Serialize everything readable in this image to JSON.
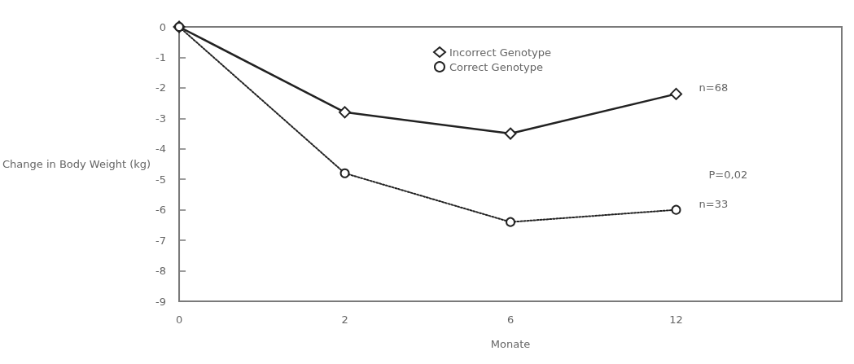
{
  "chart_data": {
    "type": "line",
    "xlabel": "Monate",
    "ylabel": "Change in Body Weight (kg)",
    "categories": [
      "0",
      "2",
      "6",
      "12",
      null
    ],
    "series": [
      {
        "name": "Incorrect Genotype",
        "color": "#222222",
        "marker": "diamond",
        "line_style": "solid",
        "values": [
          0,
          -2.8,
          -3.5,
          -2.2,
          null
        ]
      },
      {
        "name": "Correct Genotype",
        "color": "#222222",
        "marker": "circle",
        "line_style": "dotted",
        "values": [
          0,
          -4.8,
          -6.4,
          -6.0,
          null
        ]
      }
    ],
    "ylim": [
      -9,
      0
    ],
    "yticks": [
      -9,
      -8,
      -7,
      -6,
      -5,
      -4,
      -3,
      -2,
      -1,
      0
    ],
    "legend": "top",
    "grid": false,
    "annotations": [
      {
        "text": "n=68",
        "x": "12",
        "y": -2.2
      },
      {
        "text": "n=33",
        "x": "12",
        "y": -6.0
      },
      "P=0,02"
    ]
  }
}
